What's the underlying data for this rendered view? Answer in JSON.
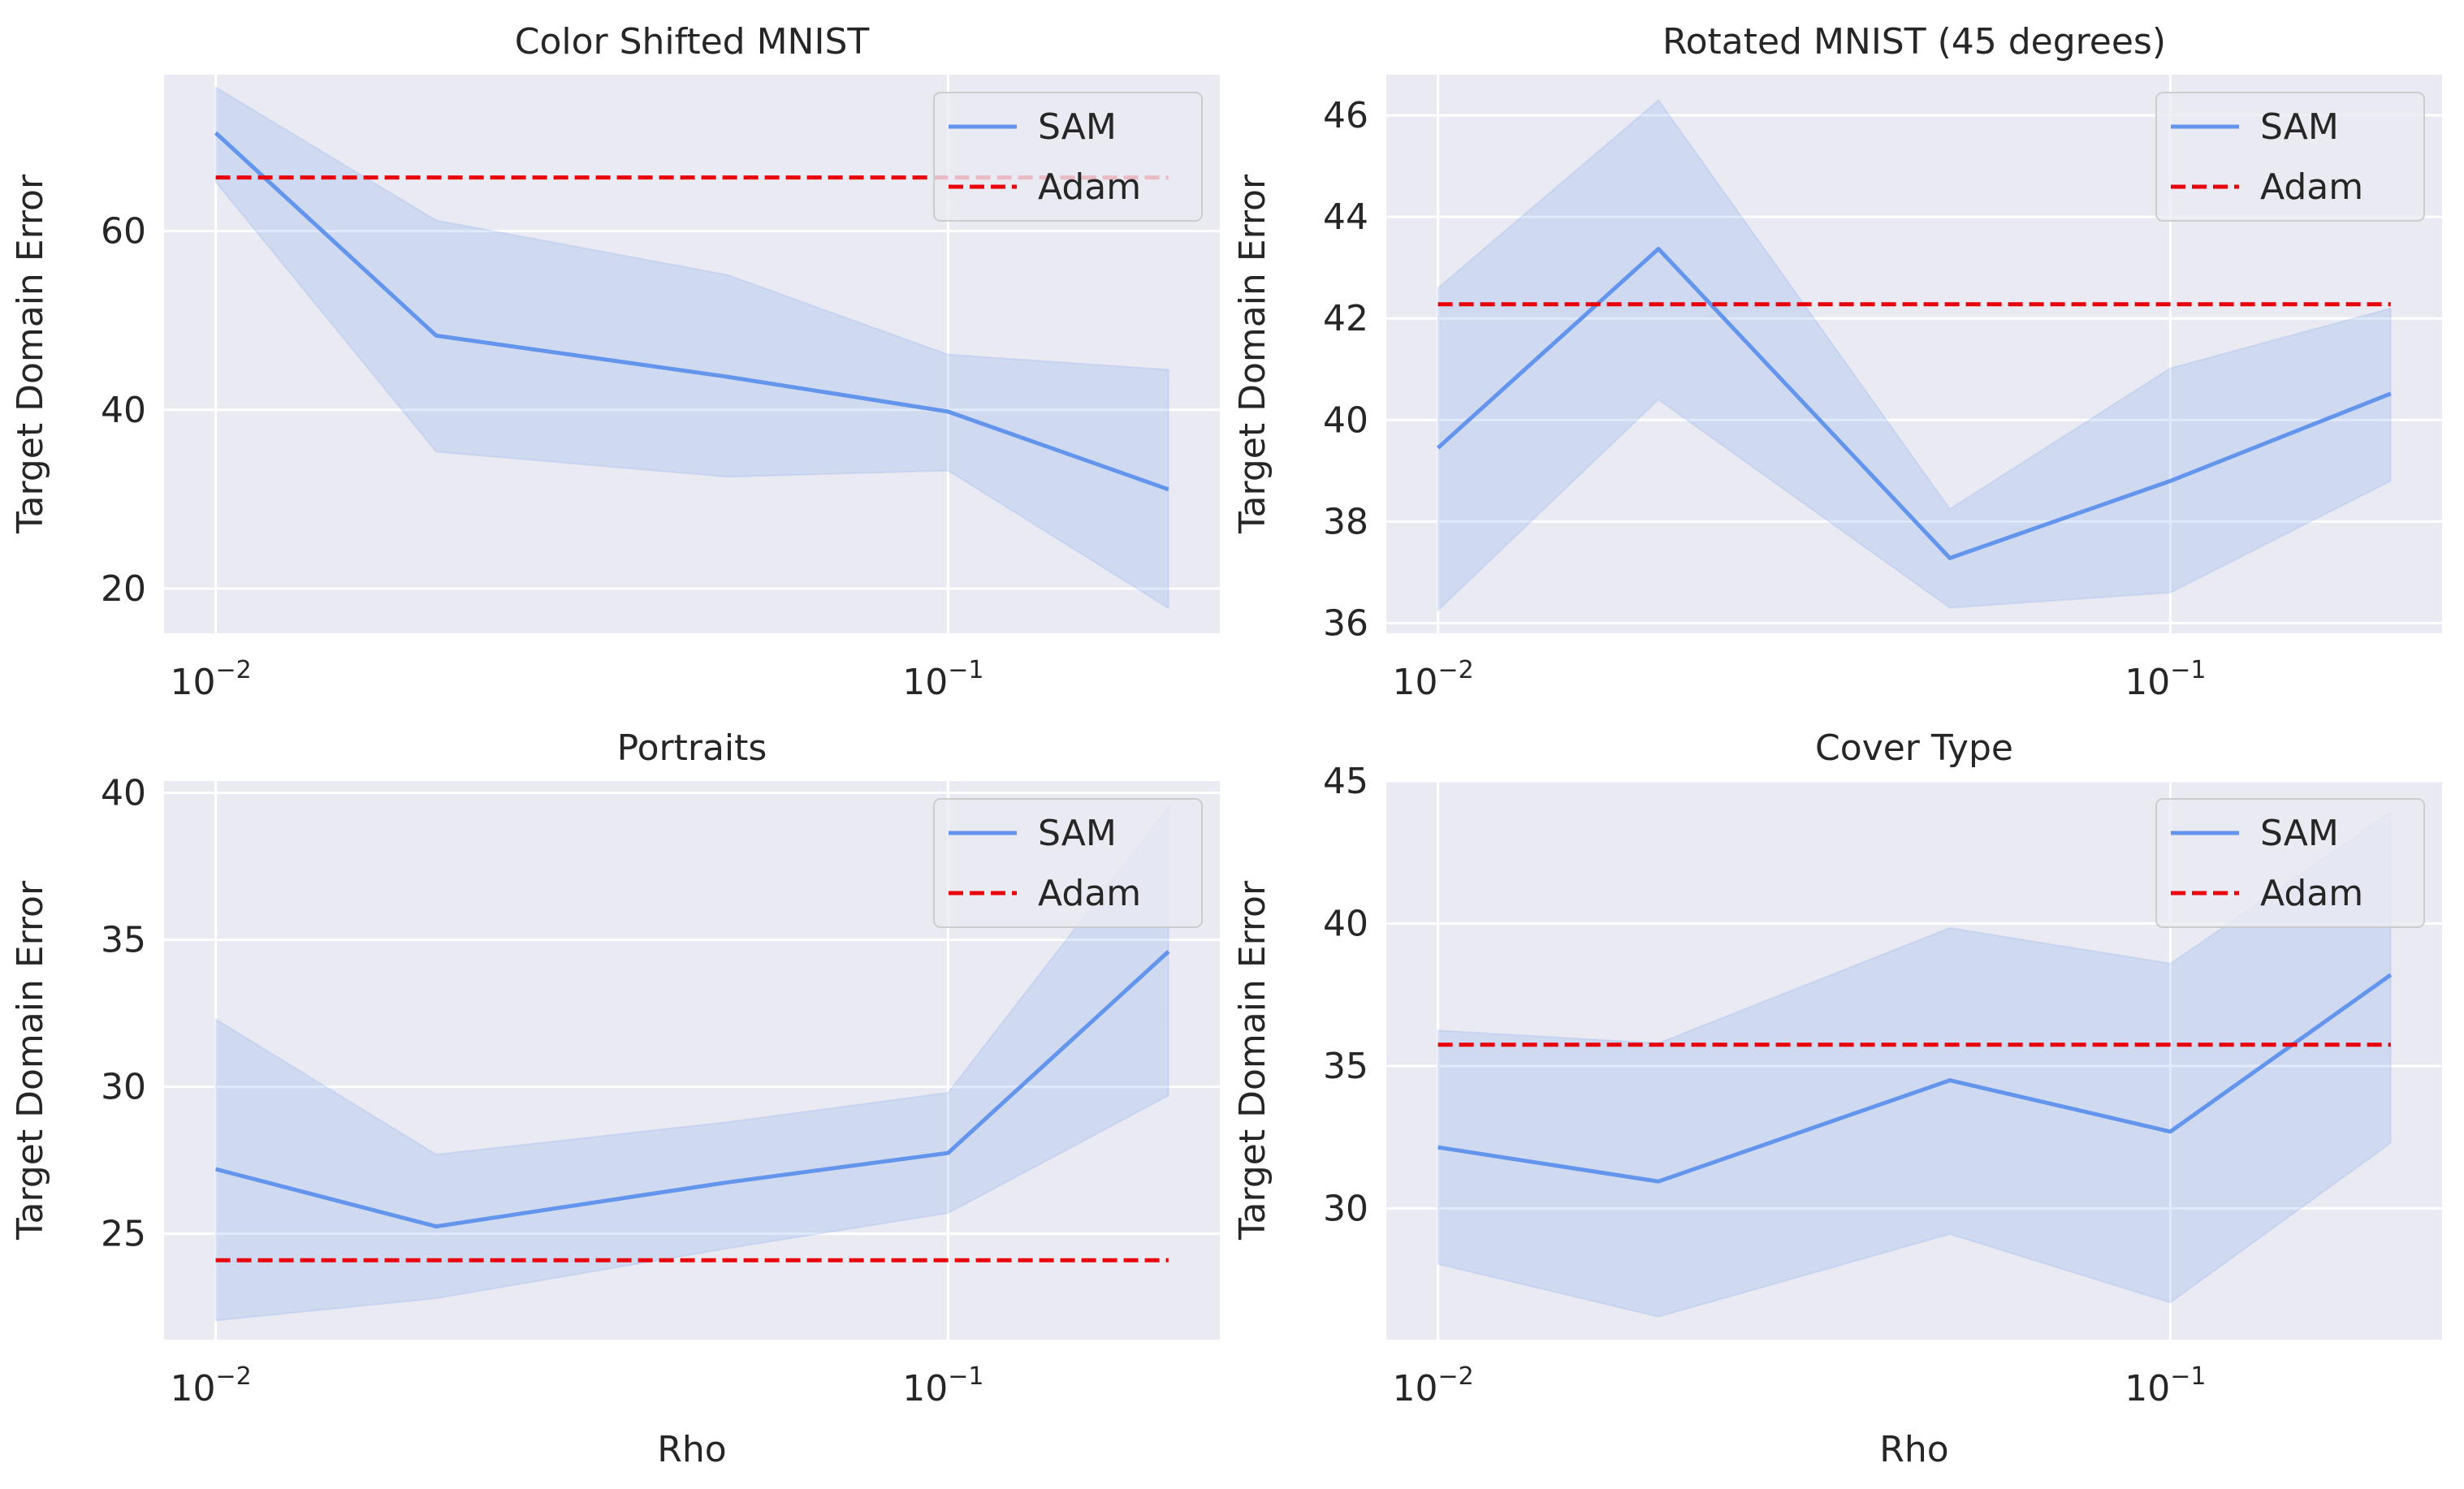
{
  "chart_data": [
    {
      "type": "line",
      "title": "Color Shifted MNIST",
      "xlabel": "",
      "ylabel": "Target Domain Error",
      "xscale": "log",
      "xlim": [
        0.0085,
        0.235
      ],
      "ylim": [
        15,
        77.5
      ],
      "xticks": [
        {
          "base": "10",
          "exp": "−2",
          "value": 0.01
        },
        {
          "base": "10",
          "exp": "−1",
          "value": 0.1
        }
      ],
      "yticks": [
        20,
        40,
        60
      ],
      "grid": true,
      "legend": {
        "placement": "top-right",
        "entries": [
          "SAM",
          "Adam"
        ]
      },
      "series": [
        {
          "name": "SAM",
          "style": "solid",
          "color": "#6495ED",
          "x": [
            0.01,
            0.02,
            0.05,
            0.1,
            0.2
          ],
          "y": [
            71,
            48.3,
            43.7,
            39.8,
            31.1
          ],
          "band_low": [
            65.5,
            35.3,
            32.5,
            33.2,
            17.8
          ],
          "band_high": [
            76.1,
            61.2,
            55.1,
            46.2,
            44.5
          ]
        },
        {
          "name": "Adam",
          "style": "dashed",
          "color": "#E8000B",
          "x": [
            0.01,
            0.2
          ],
          "y": [
            66.0,
            66.0
          ]
        }
      ]
    },
    {
      "type": "line",
      "title": "Rotated MNIST (45 degrees)",
      "xlabel": "",
      "ylabel": "Target Domain Error",
      "xscale": "log",
      "xlim": [
        0.0085,
        0.235
      ],
      "ylim": [
        35.8,
        46.8
      ],
      "xticks": [
        {
          "base": "10",
          "exp": "−2",
          "value": 0.01
        },
        {
          "base": "10",
          "exp": "−1",
          "value": 0.1
        }
      ],
      "yticks": [
        36,
        38,
        40,
        42,
        44,
        46
      ],
      "grid": true,
      "legend": {
        "placement": "top-right",
        "entries": [
          "SAM",
          "Adam"
        ]
      },
      "series": [
        {
          "name": "SAM",
          "style": "solid",
          "color": "#6495ED",
          "x": [
            0.01,
            0.02,
            0.05,
            0.1,
            0.2
          ],
          "y": [
            39.45,
            43.37,
            37.28,
            38.8,
            40.52
          ],
          "band_low": [
            36.25,
            40.4,
            36.3,
            36.6,
            38.8
          ],
          "band_high": [
            42.6,
            46.3,
            38.25,
            41.02,
            42.2
          ]
        },
        {
          "name": "Adam",
          "style": "dashed",
          "color": "#E8000B",
          "x": [
            0.01,
            0.2
          ],
          "y": [
            42.28,
            42.28
          ]
        }
      ]
    },
    {
      "type": "line",
      "title": "Portraits",
      "xlabel": "Rho",
      "ylabel": "Target Domain Error",
      "xscale": "log",
      "xlim": [
        0.0085,
        0.235
      ],
      "ylim": [
        21.4,
        40.4
      ],
      "xticks": [
        {
          "base": "10",
          "exp": "−2",
          "value": 0.01
        },
        {
          "base": "10",
          "exp": "−1",
          "value": 0.1
        }
      ],
      "yticks": [
        25,
        30,
        35,
        40
      ],
      "grid": true,
      "legend": {
        "placement": "top-right",
        "entries": [
          "SAM",
          "Adam"
        ]
      },
      "series": [
        {
          "name": "SAM",
          "style": "solid",
          "color": "#6495ED",
          "x": [
            0.01,
            0.02,
            0.05,
            0.1,
            0.2
          ],
          "y": [
            27.2,
            25.25,
            26.75,
            27.75,
            34.6
          ],
          "band_low": [
            22.05,
            22.8,
            24.5,
            25.7,
            29.7
          ],
          "band_high": [
            32.3,
            27.7,
            28.8,
            29.8,
            39.5
          ]
        },
        {
          "name": "Adam",
          "style": "dashed",
          "color": "#E8000B",
          "x": [
            0.01,
            0.2
          ],
          "y": [
            24.1,
            24.1
          ]
        }
      ]
    },
    {
      "type": "line",
      "title": "Cover Type",
      "xlabel": "Rho",
      "ylabel": "Target Domain Error",
      "xscale": "log",
      "xlim": [
        0.0085,
        0.235
      ],
      "ylim": [
        25.4,
        45
      ],
      "xticks": [
        {
          "base": "10",
          "exp": "−2",
          "value": 0.01
        },
        {
          "base": "10",
          "exp": "−1",
          "value": 0.1
        }
      ],
      "yticks": [
        30,
        35,
        40,
        45
      ],
      "grid": true,
      "legend": {
        "placement": "top-right",
        "entries": [
          "SAM",
          "Adam"
        ]
      },
      "series": [
        {
          "name": "SAM",
          "style": "solid",
          "color": "#6495ED",
          "x": [
            0.01,
            0.02,
            0.05,
            0.1,
            0.2
          ],
          "y": [
            32.15,
            30.95,
            34.5,
            32.7,
            38.2
          ],
          "band_low": [
            28.05,
            26.2,
            29.1,
            26.7,
            32.3
          ],
          "band_high": [
            36.25,
            35.8,
            39.85,
            38.6,
            43.9
          ]
        },
        {
          "name": "Adam",
          "style": "dashed",
          "color": "#E8000B",
          "x": [
            0.01,
            0.2
          ],
          "y": [
            35.75,
            35.75
          ]
        }
      ]
    }
  ]
}
